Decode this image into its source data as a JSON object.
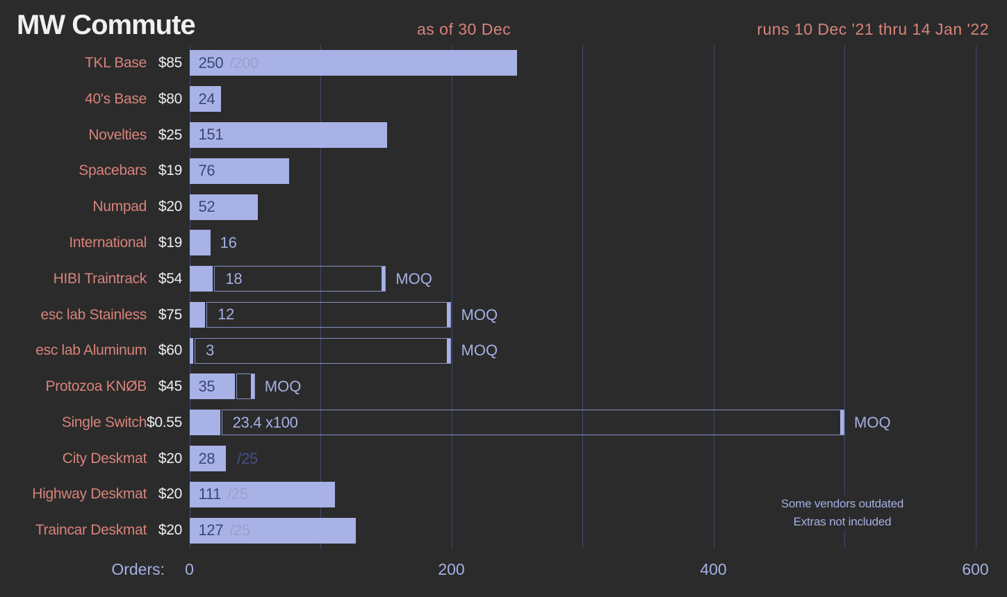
{
  "header": {
    "title": "MW Commute",
    "as_of": "as of 30 Dec",
    "run_dates": "runs 10 Dec '21 thru 14 Jan '22"
  },
  "colors": {
    "background": "#2b2b2b",
    "bar_fill": "#a8b2e6",
    "bar_value_dark": "#3c4673",
    "value_light": "#a6b0e4",
    "goal_muted": "#99a1c9",
    "goal_dim": "#46518c",
    "gridline": "#3e4a76",
    "moq_outline": "#8891c4",
    "label_coral": "#d9837a",
    "price_white": "#f1efef"
  },
  "chart_data": {
    "type": "bar",
    "orientation": "horizontal",
    "title": "MW Commute",
    "xlabel": "Orders:",
    "x_ticks": [
      0,
      200,
      400,
      600
    ],
    "x_gridline_step": 100,
    "x_gridline_max": 600,
    "xlim": [
      0,
      624
    ],
    "grid": true,
    "note_lines": [
      "Some vendors outdated",
      "Extras not included"
    ],
    "rows": [
      {
        "name": "TKL Base",
        "price": "$85",
        "orders": 250,
        "value_label": "250",
        "value_pos": "in-fill",
        "goal": 200,
        "goal_label": "/200",
        "goal_pos": "in-fill"
      },
      {
        "name": "40's Base",
        "price": "$80",
        "orders": 24,
        "value_label": "24",
        "value_pos": "in-fill"
      },
      {
        "name": "Novelties",
        "price": "$25",
        "orders": 151,
        "value_label": "151",
        "value_pos": "in-fill"
      },
      {
        "name": "Spacebars",
        "price": "$19",
        "orders": 76,
        "value_label": "76",
        "value_pos": "in-fill"
      },
      {
        "name": "Numpad",
        "price": "$20",
        "orders": 52,
        "value_label": "52",
        "value_pos": "in-fill"
      },
      {
        "name": "International",
        "price": "$19",
        "orders": 16,
        "value_label": "16",
        "value_pos": "after-bar"
      },
      {
        "name": "HIBI Traintrack",
        "price": "$54",
        "orders": 18,
        "value_label": "18",
        "value_pos": "in-outline",
        "moq": 150,
        "moq_label": "MOQ"
      },
      {
        "name": "esc lab Stainless",
        "price": "$75",
        "orders": 12,
        "value_label": "12",
        "value_pos": "in-outline",
        "moq": 200,
        "moq_label": "MOQ"
      },
      {
        "name": "esc lab Aluminum",
        "price": "$60",
        "orders": 3,
        "value_label": "3",
        "value_pos": "in-outline",
        "moq": 200,
        "moq_label": "MOQ"
      },
      {
        "name": "Protozoa KNØB",
        "price": "$45",
        "orders": 35,
        "value_label": "35",
        "value_pos": "in-fill",
        "moq": 50,
        "moq_label": "MOQ"
      },
      {
        "name": "Single Switch",
        "price": "$0.55",
        "orders": 23.4,
        "value_label": "23.4 x100",
        "value_pos": "in-outline",
        "moq": 500,
        "moq_label": "MOQ"
      },
      {
        "name": "City Deskmat",
        "price": "$20",
        "orders": 28,
        "value_label": "28",
        "value_pos": "in-fill",
        "goal": 25,
        "goal_label": "/25",
        "goal_pos": "after-bar"
      },
      {
        "name": "Highway Deskmat",
        "price": "$20",
        "orders": 111,
        "value_label": "111",
        "value_pos": "in-fill",
        "goal": 25,
        "goal_label": "/25",
        "goal_pos": "in-fill"
      },
      {
        "name": "Traincar Deskmat",
        "price": "$20",
        "orders": 127,
        "value_label": "127",
        "value_pos": "in-fill",
        "goal": 25,
        "goal_label": "/25",
        "goal_pos": "in-fill"
      }
    ]
  }
}
